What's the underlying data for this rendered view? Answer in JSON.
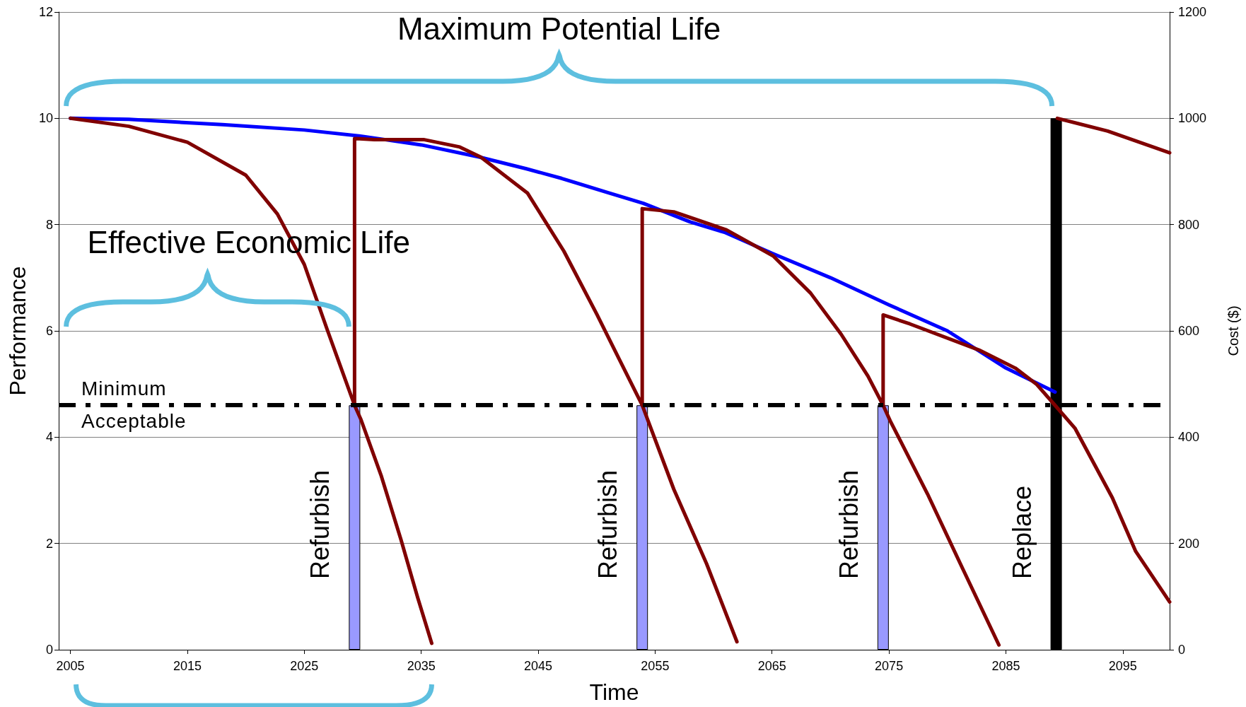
{
  "chart_data": {
    "type": "line",
    "xlabel": "Time",
    "ylabel": "Performance",
    "y2label": "Cost ($)",
    "xlim": [
      2004,
      2099
    ],
    "xticks": [
      2005,
      2015,
      2025,
      2035,
      2045,
      2055,
      2065,
      2075,
      2085,
      2095
    ],
    "ylim": [
      0,
      12
    ],
    "yticks": [
      0,
      2,
      4,
      6,
      8,
      10,
      12
    ],
    "y2lim": [
      0,
      1200
    ],
    "y2ticks": [
      0,
      200,
      400,
      600,
      800,
      1000,
      1200
    ],
    "grid": "y",
    "marker": "none",
    "annotations": [
      "Maximum Potential Life",
      "Effective Economic Life",
      "Refurbish",
      "Refurbish",
      "Refurbish",
      "Replace"
    ],
    "ref_lines": [
      {
        "axis": "y",
        "value": 4.6,
        "label": "Minimum\nAcceptable",
        "color": "#000000",
        "line_style": "dashed"
      }
    ],
    "series": [
      {
        "color": "#0000ff",
        "x": [
          2005,
          2010,
          2018,
          2025,
          2030,
          2035,
          2040,
          2044,
          2047,
          2051,
          2054,
          2058,
          2061,
          2065,
          2070,
          2075,
          2080,
          2085,
          2089.2
        ],
        "values": [
          10,
          9.98,
          9.88,
          9.78,
          9.66,
          9.5,
          9.27,
          9.05,
          8.87,
          8.6,
          8.4,
          8.05,
          7.85,
          7.46,
          7.0,
          6.49,
          6.0,
          5.3,
          4.85
        ]
      },
      {
        "color": "#800000",
        "x": [
          2005,
          2010,
          2015,
          2020,
          2022.7,
          2025,
          2027,
          2029.3,
          2029.3,
          2031,
          2035.2,
          2038.3,
          2040.1,
          2044.1,
          2047.2,
          2050,
          2053.9,
          2053.9,
          2056.6,
          2061.1,
          2065.1,
          2068.3,
          2070.9,
          2073.2,
          2074.5,
          2074.5,
          2076.8,
          2082.7,
          2085.8,
          2087.6,
          2089.2,
          2090.9,
          2094.1,
          2096.1,
          2099
        ],
        "values": [
          10,
          9.85,
          9.55,
          8.93,
          8.2,
          7.25,
          6.0,
          4.6,
          9.62,
          9.6,
          9.6,
          9.46,
          9.27,
          8.59,
          7.5,
          6.32,
          4.6,
          8.3,
          8.24,
          7.9,
          7.41,
          6.71,
          5.94,
          5.15,
          4.6,
          6.3,
          6.13,
          5.64,
          5.3,
          5.0,
          4.6,
          4.17,
          2.86,
          1.85,
          0.9
        ]
      },
      {
        "color": "#800000",
        "x": [
          2089.4,
          2093.7,
          2099
        ],
        "values": [
          10,
          9.76,
          9.35
        ]
      },
      {
        "color": "#800000",
        "x": [
          2029.3,
          2029.85,
          2031.6,
          2033.3,
          2034.7,
          2035.9
        ],
        "values": [
          4.6,
          4.33,
          3.26,
          2.05,
          0.98,
          0.12
        ]
      },
      {
        "color": "#800000",
        "x": [
          2053.9,
          2056.6,
          2059.4,
          2062
        ],
        "values": [
          4.6,
          3.02,
          1.62,
          0.15
        ]
      },
      {
        "color": "#800000",
        "x": [
          2074.5,
          2075.1,
          2078.3,
          2081.1,
          2084.4
        ],
        "values": [
          4.6,
          4.31,
          2.93,
          1.62,
          0.09
        ]
      },
      {
        "type": "bar",
        "axis": "y2",
        "x": [
          2029.3,
          2053.9,
          2074.5,
          2089.3
        ],
        "values": [
          460,
          460,
          460,
          1000
        ],
        "colors": [
          "#9999ff",
          "#9999ff",
          "#9999ff",
          "#000000"
        ]
      }
    ]
  }
}
